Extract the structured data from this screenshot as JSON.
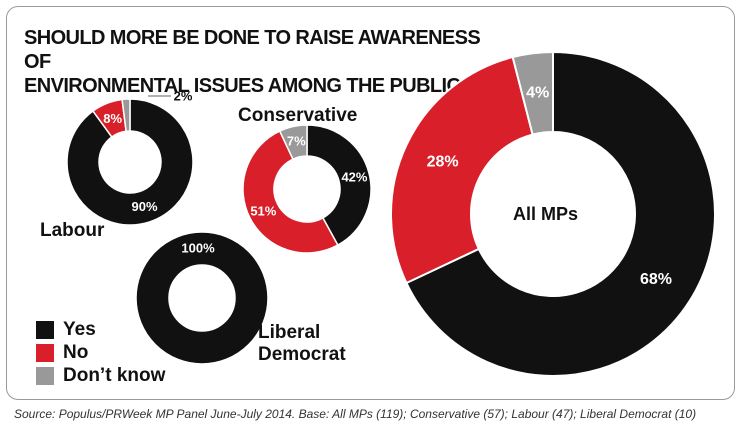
{
  "title_lines": [
    "Should more be done to raise awareness of",
    "environmental issues among the public?"
  ],
  "colors": {
    "yes": "#111111",
    "no": "#d81f2a",
    "dont_know": "#999999"
  },
  "legend": [
    {
      "label": "Yes",
      "color": "#111111"
    },
    {
      "label": "No",
      "color": "#d81f2a"
    },
    {
      "label": "Don’t know",
      "color": "#999999"
    }
  ],
  "labels": {
    "labour": "Labour",
    "conservative": "Conservative",
    "liberal_democrat": [
      "Liberal",
      "Democrat"
    ],
    "all_mps": "All MPs"
  },
  "source": "Source: Populus/PRWeek MP Panel June-July 2014. Base: All MPs (119); Conservative (57); Labour (47); Liberal Democrat (10)",
  "chart_data": [
    {
      "type": "pie",
      "name": "Labour",
      "categories": [
        "Yes",
        "No",
        "Don’t know"
      ],
      "values": [
        90,
        8,
        2
      ],
      "unit": "%"
    },
    {
      "type": "pie",
      "name": "Conservative",
      "categories": [
        "Yes",
        "No",
        "Don’t know"
      ],
      "values": [
        42,
        51,
        7
      ],
      "unit": "%"
    },
    {
      "type": "pie",
      "name": "Liberal Democrat",
      "categories": [
        "Yes"
      ],
      "values": [
        100
      ],
      "unit": "%"
    },
    {
      "type": "pie",
      "name": "All MPs",
      "categories": [
        "Yes",
        "No",
        "Don’t know"
      ],
      "values": [
        68,
        28,
        4
      ],
      "unit": "%"
    }
  ]
}
